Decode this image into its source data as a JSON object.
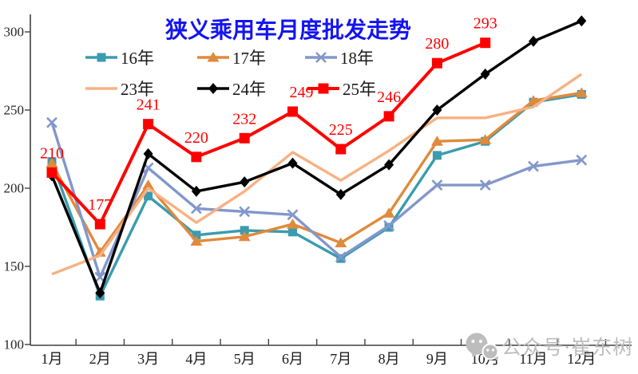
{
  "chart_data": {
    "type": "line",
    "title": "狭义乘用车月度批发走势",
    "title_color": "#1414f0",
    "xlabel": "",
    "ylabel": "",
    "categories": [
      "1月",
      "2月",
      "3月",
      "4月",
      "5月",
      "6月",
      "7月",
      "8月",
      "9月",
      "10月",
      "11月",
      "12月"
    ],
    "y_ticks": [
      100,
      150,
      200,
      250,
      300
    ],
    "ylim": [
      100,
      310
    ],
    "grid": false,
    "legend_position": "top-two-rows",
    "axis_color": "#404040",
    "tick_label_color": "#262626",
    "data_label_color": "#ff0000",
    "series": [
      {
        "name": "16年",
        "color": "#3a9cae",
        "marker": "square",
        "values": [
          217,
          131,
          195,
          170,
          173,
          172,
          155,
          175,
          221,
          230,
          255,
          260
        ]
      },
      {
        "name": "17年",
        "color": "#e08a3c",
        "marker": "triangle",
        "values": [
          216,
          159,
          202,
          166,
          169,
          177,
          165,
          184,
          230,
          231,
          256,
          261
        ]
      },
      {
        "name": "18年",
        "color": "#8297cb",
        "marker": "x",
        "values": [
          242,
          143,
          213,
          187,
          185,
          183,
          156,
          176,
          202,
          202,
          214,
          218
        ]
      },
      {
        "name": "23年",
        "color": "#f8b183",
        "marker": "none",
        "values": [
          145,
          157,
          200,
          178,
          198,
          223,
          205,
          224,
          245,
          245,
          252,
          273
        ]
      },
      {
        "name": "24年",
        "color": "#000000",
        "marker": "diamond",
        "values": [
          208,
          133,
          222,
          198,
          204,
          216,
          196,
          215,
          250,
          273,
          294,
          307
        ]
      },
      {
        "name": "25年",
        "color": "#ff0000",
        "marker": "square",
        "big_marker": true,
        "data_labels": true,
        "values": [
          210,
          177,
          241,
          220,
          232,
          249,
          225,
          246,
          280,
          293
        ]
      }
    ],
    "watermark": {
      "icon": "wechat-icon",
      "text": "公众号·崔东树",
      "color": "#bdbdbd"
    }
  }
}
